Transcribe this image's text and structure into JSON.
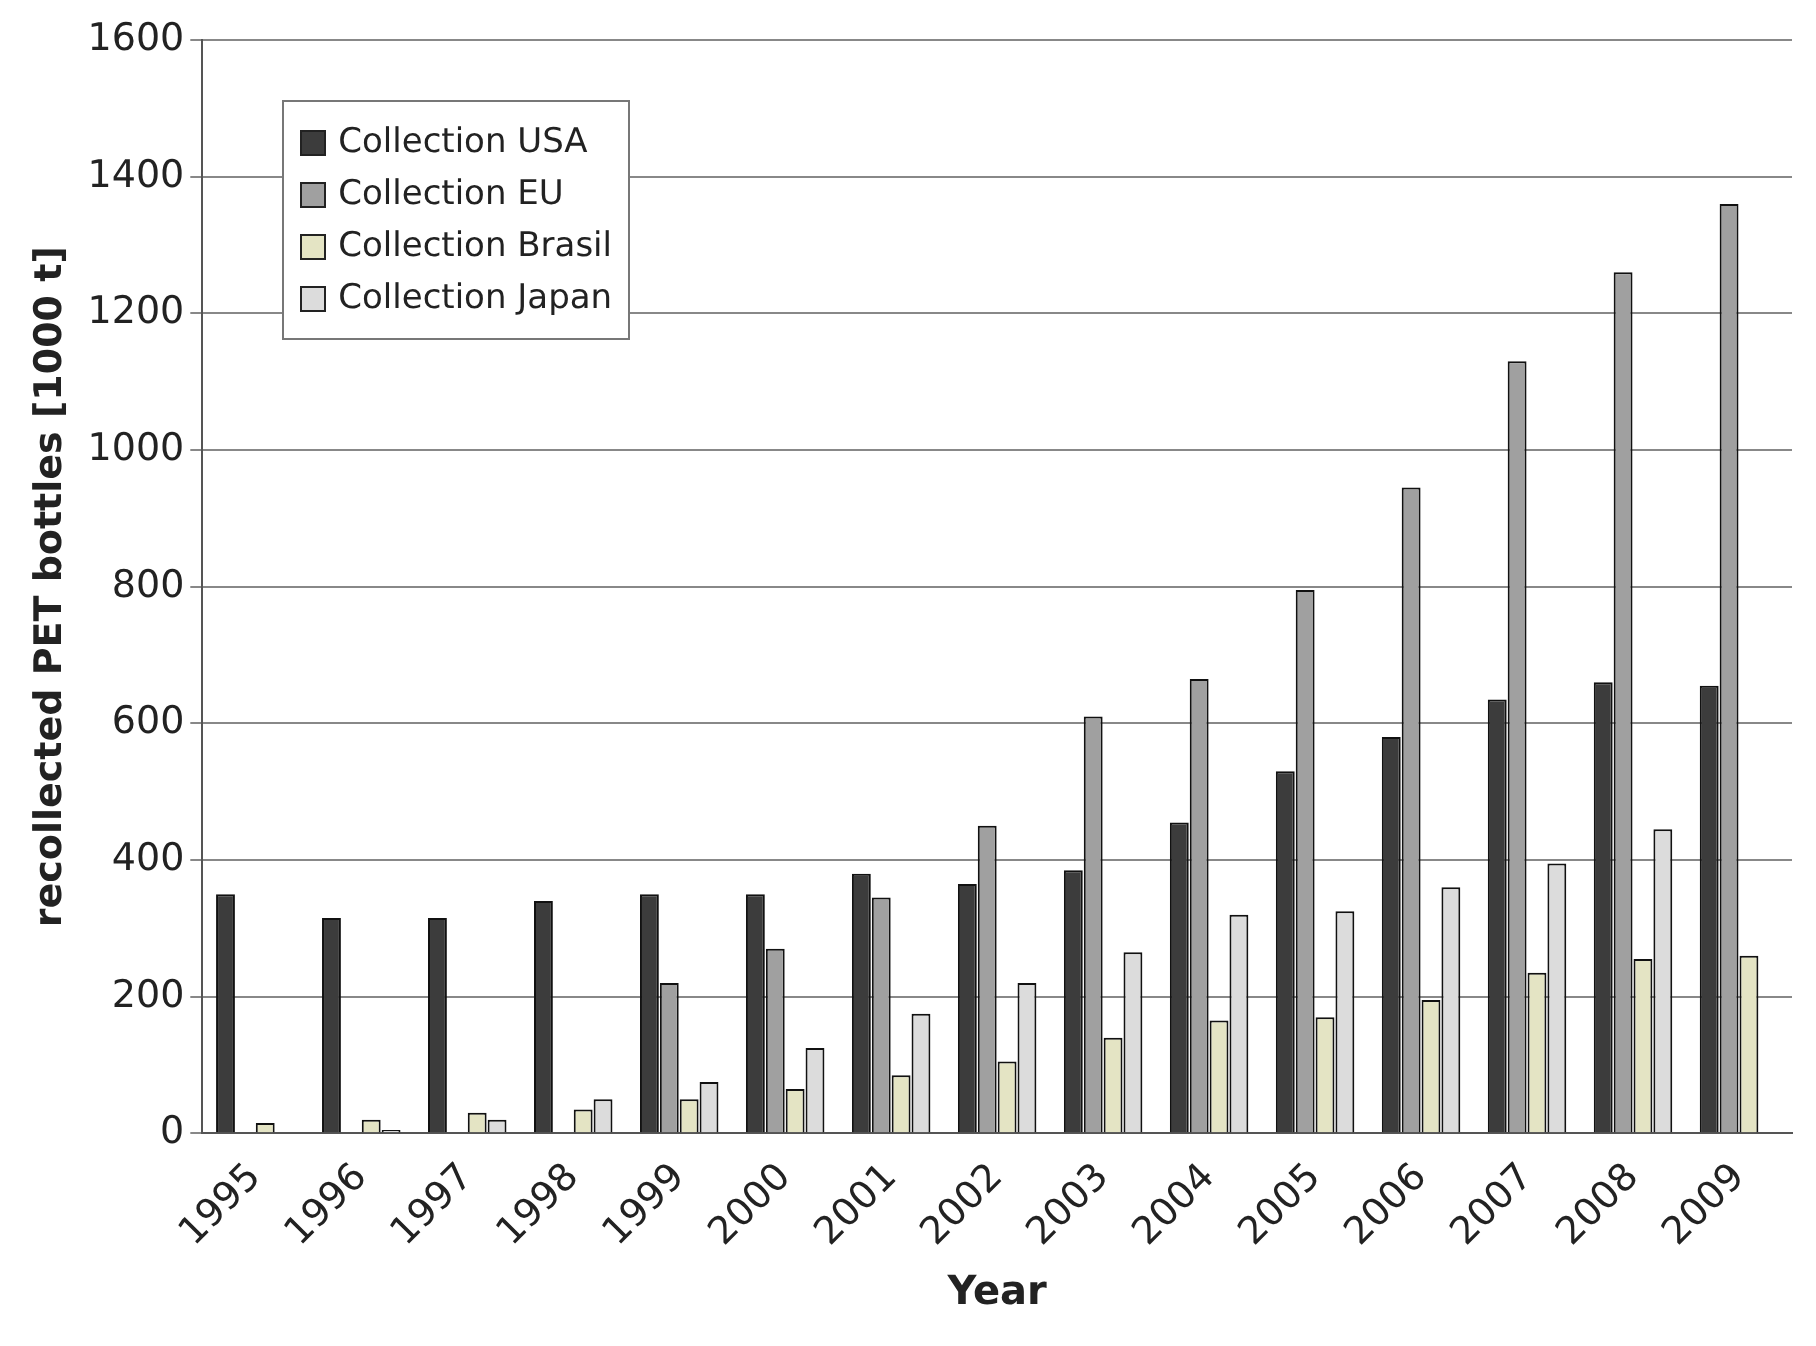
{
  "chart_data": {
    "type": "bar",
    "xlabel": "Year",
    "ylabel": "recollected PET bottles [1000 t]",
    "categories": [
      "1995",
      "1996",
      "1997",
      "1998",
      "1999",
      "2000",
      "2001",
      "2002",
      "2003",
      "2004",
      "2005",
      "2006",
      "2007",
      "2008",
      "2009"
    ],
    "series": [
      {
        "name": "Collection USA",
        "color": "#3c3c3c",
        "values": [
          350,
          315,
          315,
          340,
          350,
          350,
          380,
          365,
          385,
          455,
          530,
          580,
          635,
          660,
          655
        ]
      },
      {
        "name": "Collection EU",
        "color": "#a0a0a0",
        "values": [
          null,
          null,
          null,
          null,
          220,
          270,
          345,
          450,
          610,
          665,
          795,
          945,
          1130,
          1260,
          1360
        ]
      },
      {
        "name": "Collection Brasil",
        "color": "#e4e4c4",
        "values": [
          15,
          20,
          30,
          35,
          50,
          65,
          85,
          105,
          140,
          165,
          170,
          195,
          235,
          255,
          260
        ]
      },
      {
        "name": "Collection Japan",
        "color": "#dcdcdc",
        "values": [
          null,
          5,
          20,
          50,
          75,
          125,
          175,
          220,
          265,
          320,
          325,
          360,
          395,
          445,
          null
        ]
      }
    ],
    "ylim": [
      0,
      1600
    ],
    "yticks": [
      0,
      200,
      400,
      600,
      800,
      1000,
      1200,
      1400,
      1600
    ],
    "grid": "y",
    "legend": "top left"
  }
}
